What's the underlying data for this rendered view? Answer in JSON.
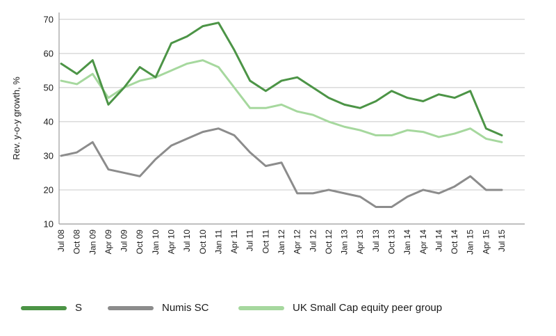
{
  "chart": {
    "y_axis_title": "Rev. y-o-y growth, %"
  },
  "chart_data": {
    "type": "line",
    "title": "",
    "xlabel": "",
    "ylabel": "Rev. y-o-y growth, %",
    "ylim": [
      10,
      72
    ],
    "yticks": [
      10,
      20,
      30,
      40,
      50,
      60,
      70
    ],
    "grid": true,
    "legend_position": "bottom",
    "x": [
      "Jul 08",
      "Oct 08",
      "Jan 09",
      "Apr 09",
      "Jul 09",
      "Oct 09",
      "Jan 10",
      "Apr 10",
      "Jul 10",
      "Oct 10",
      "Jan 11",
      "Apr 11",
      "Jul 11",
      "Oct 11",
      "Jan 12",
      "Apr 12",
      "Jul 12",
      "Oct 12",
      "Jan 13",
      "Apr 13",
      "Jul 13",
      "Oct 13",
      "Jan 14",
      "Apr 14",
      "Jul 14",
      "Oct 14",
      "Jan 15",
      "Apr 15",
      "Jul 15"
    ],
    "series": [
      {
        "name": "S",
        "color": "#4c9446",
        "values": [
          57,
          54,
          58,
          45,
          50,
          56,
          53,
          63,
          65,
          68,
          69,
          61,
          52,
          49,
          52,
          53,
          50,
          47,
          45,
          44,
          46,
          49,
          47,
          46,
          48,
          47,
          49,
          38,
          36
        ]
      },
      {
        "name": "Numis SC",
        "color": "#8c8c8c",
        "values": [
          30,
          31,
          34,
          26,
          25,
          24,
          29,
          33,
          35,
          37,
          38,
          36,
          31,
          27,
          28,
          19,
          19,
          20,
          19,
          18,
          15,
          15,
          18,
          20,
          19,
          21,
          24,
          20,
          20
        ]
      },
      {
        "name": "UK Small Cap equity peer group",
        "color": "#a6d89e",
        "values": [
          52,
          51,
          54,
          47,
          50,
          52,
          53,
          55,
          57,
          58,
          56,
          50,
          44,
          44,
          45,
          43,
          42,
          40,
          38.5,
          37.5,
          36,
          36,
          37.5,
          37,
          35.5,
          36.5,
          38,
          35,
          34
        ]
      }
    ],
    "colors": {
      "gridline": "#c8c8c8",
      "axis": "#9b9b9b",
      "text": "#1a1a1a"
    }
  }
}
